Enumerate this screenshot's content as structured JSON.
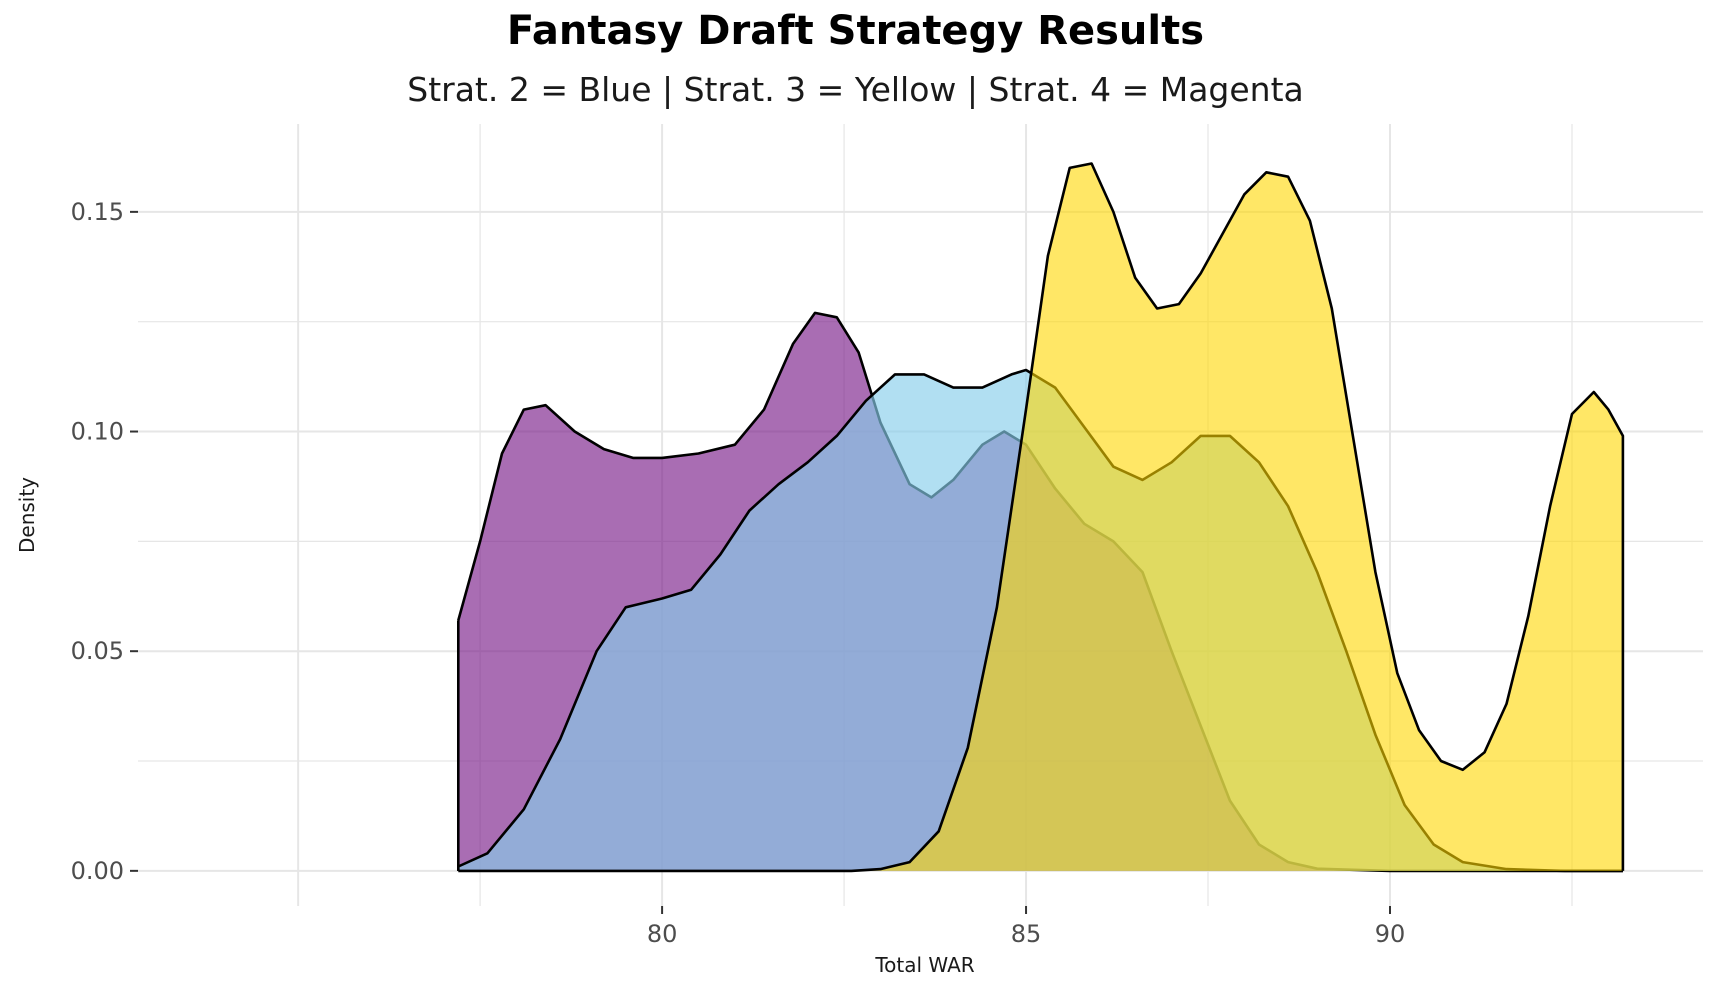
{
  "chart_data": {
    "type": "area",
    "title": "Fantasy Draft Strategy Results",
    "subtitle": "Strat. 2 = Blue | Strat. 3 = Yellow | Strat. 4 = Magenta",
    "xlabel": "Total WAR",
    "ylabel": "Density",
    "xlim": [
      72.8,
      94.3
    ],
    "ylim": [
      -0.008,
      0.17
    ],
    "x_ticks": [
      80,
      85,
      90
    ],
    "x_tick_labels": [
      "80",
      "85",
      "90"
    ],
    "y_ticks": [
      0.0,
      0.05,
      0.1,
      0.15
    ],
    "y_tick_labels": [
      "0.00",
      "0.05",
      "0.10",
      "0.15"
    ],
    "grid": true,
    "series": [
      {
        "color": "#7b1f8a",
        "opacity": 0.65,
        "points": [
          [
            77.2,
            0.057
          ],
          [
            77.5,
            0.075
          ],
          [
            77.8,
            0.095
          ],
          [
            78.1,
            0.105
          ],
          [
            78.4,
            0.106
          ],
          [
            78.8,
            0.1
          ],
          [
            79.2,
            0.096
          ],
          [
            79.6,
            0.094
          ],
          [
            80.0,
            0.094
          ],
          [
            80.5,
            0.095
          ],
          [
            81.0,
            0.097
          ],
          [
            81.4,
            0.105
          ],
          [
            81.8,
            0.12
          ],
          [
            82.1,
            0.127
          ],
          [
            82.4,
            0.126
          ],
          [
            82.7,
            0.118
          ],
          [
            83.0,
            0.102
          ],
          [
            83.4,
            0.088
          ],
          [
            83.7,
            0.085
          ],
          [
            84.0,
            0.089
          ],
          [
            84.4,
            0.097
          ],
          [
            84.7,
            0.1
          ],
          [
            85.0,
            0.097
          ],
          [
            85.4,
            0.087
          ],
          [
            85.8,
            0.079
          ],
          [
            86.2,
            0.075
          ],
          [
            86.6,
            0.068
          ],
          [
            87.0,
            0.05
          ],
          [
            87.4,
            0.033
          ],
          [
            87.8,
            0.016
          ],
          [
            88.2,
            0.006
          ],
          [
            88.6,
            0.002
          ],
          [
            89.0,
            0.0005
          ],
          [
            90.0,
            0.0
          ],
          [
            93.2,
            0.0
          ]
        ]
      },
      {
        "color": "#87ceeb",
        "opacity": 0.65,
        "points": [
          [
            77.2,
            0.001
          ],
          [
            77.6,
            0.004
          ],
          [
            78.1,
            0.014
          ],
          [
            78.6,
            0.03
          ],
          [
            79.1,
            0.05
          ],
          [
            79.5,
            0.06
          ],
          [
            80.0,
            0.062
          ],
          [
            80.4,
            0.064
          ],
          [
            80.8,
            0.072
          ],
          [
            81.2,
            0.082
          ],
          [
            81.6,
            0.088
          ],
          [
            82.0,
            0.093
          ],
          [
            82.4,
            0.099
          ],
          [
            82.8,
            0.107
          ],
          [
            83.2,
            0.113
          ],
          [
            83.6,
            0.113
          ],
          [
            84.0,
            0.11
          ],
          [
            84.4,
            0.11
          ],
          [
            84.8,
            0.113
          ],
          [
            85.0,
            0.114
          ],
          [
            85.4,
            0.11
          ],
          [
            85.8,
            0.101
          ],
          [
            86.2,
            0.092
          ],
          [
            86.6,
            0.089
          ],
          [
            87.0,
            0.093
          ],
          [
            87.4,
            0.099
          ],
          [
            87.8,
            0.099
          ],
          [
            88.2,
            0.093
          ],
          [
            88.6,
            0.083
          ],
          [
            89.0,
            0.068
          ],
          [
            89.4,
            0.05
          ],
          [
            89.8,
            0.031
          ],
          [
            90.2,
            0.015
          ],
          [
            90.6,
            0.006
          ],
          [
            91.0,
            0.002
          ],
          [
            91.6,
            0.0004
          ],
          [
            92.4,
            0.0
          ],
          [
            93.2,
            0.0
          ]
        ]
      },
      {
        "color": "#ffd700",
        "opacity": 0.6,
        "points": [
          [
            77.2,
            0.0
          ],
          [
            82.6,
            0.0
          ],
          [
            83.0,
            0.0004
          ],
          [
            83.4,
            0.002
          ],
          [
            83.8,
            0.009
          ],
          [
            84.2,
            0.028
          ],
          [
            84.6,
            0.06
          ],
          [
            85.0,
            0.105
          ],
          [
            85.3,
            0.14
          ],
          [
            85.6,
            0.16
          ],
          [
            85.9,
            0.161
          ],
          [
            86.2,
            0.15
          ],
          [
            86.5,
            0.135
          ],
          [
            86.8,
            0.128
          ],
          [
            87.1,
            0.129
          ],
          [
            87.4,
            0.136
          ],
          [
            87.7,
            0.145
          ],
          [
            88.0,
            0.154
          ],
          [
            88.3,
            0.159
          ],
          [
            88.6,
            0.158
          ],
          [
            88.9,
            0.148
          ],
          [
            89.2,
            0.128
          ],
          [
            89.5,
            0.098
          ],
          [
            89.8,
            0.068
          ],
          [
            90.1,
            0.045
          ],
          [
            90.4,
            0.032
          ],
          [
            90.7,
            0.025
          ],
          [
            91.0,
            0.023
          ],
          [
            91.3,
            0.027
          ],
          [
            91.6,
            0.038
          ],
          [
            91.9,
            0.058
          ],
          [
            92.2,
            0.083
          ],
          [
            92.5,
            0.104
          ],
          [
            92.8,
            0.109
          ],
          [
            93.0,
            0.105
          ],
          [
            93.2,
            0.099
          ]
        ]
      }
    ]
  }
}
